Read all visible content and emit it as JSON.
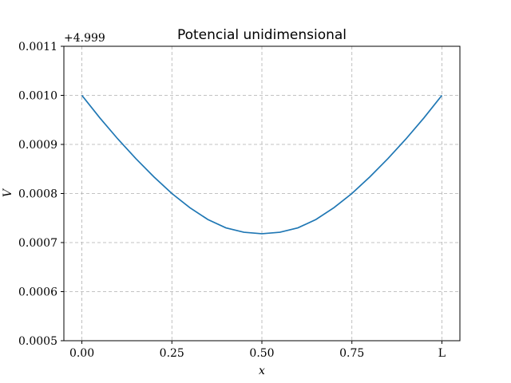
{
  "chart_data": {
    "type": "line",
    "title": "Potencial unidimensional",
    "xlabel": "x",
    "ylabel": "V",
    "y_offset_label": "+4.999",
    "xlim": [
      -0.05,
      1.05
    ],
    "ylim": [
      0.0005,
      0.0011
    ],
    "x_ticks": [
      {
        "value": 0.0,
        "label": "0.00"
      },
      {
        "value": 0.25,
        "label": "0.25"
      },
      {
        "value": 0.5,
        "label": "0.50"
      },
      {
        "value": 0.75,
        "label": "0.75"
      },
      {
        "value": 1.0,
        "label": "L"
      }
    ],
    "y_ticks": [
      {
        "value": 0.0005,
        "label": "0.0005"
      },
      {
        "value": 0.0006,
        "label": "0.0006"
      },
      {
        "value": 0.0007,
        "label": "0.0007"
      },
      {
        "value": 0.0008,
        "label": "0.0008"
      },
      {
        "value": 0.0009,
        "label": "0.0009"
      },
      {
        "value": 0.001,
        "label": "0.0010"
      },
      {
        "value": 0.0011,
        "label": "0.0011"
      }
    ],
    "grid": true,
    "series": [
      {
        "color": "#1f77b4",
        "x": [
          0.0,
          0.05,
          0.1,
          0.15,
          0.2,
          0.25,
          0.3,
          0.35,
          0.4,
          0.45,
          0.5,
          0.55,
          0.6,
          0.65,
          0.7,
          0.75,
          0.8,
          0.85,
          0.9,
          0.95,
          1.0
        ],
        "y": [
          0.001,
          0.000954,
          0.000911,
          0.000871,
          0.000834,
          0.0008,
          0.000771,
          0.000747,
          0.00073,
          0.000721,
          0.000718,
          0.000721,
          0.00073,
          0.000747,
          0.000771,
          0.0008,
          0.000834,
          0.000871,
          0.000911,
          0.000954,
          0.001
        ]
      }
    ]
  }
}
